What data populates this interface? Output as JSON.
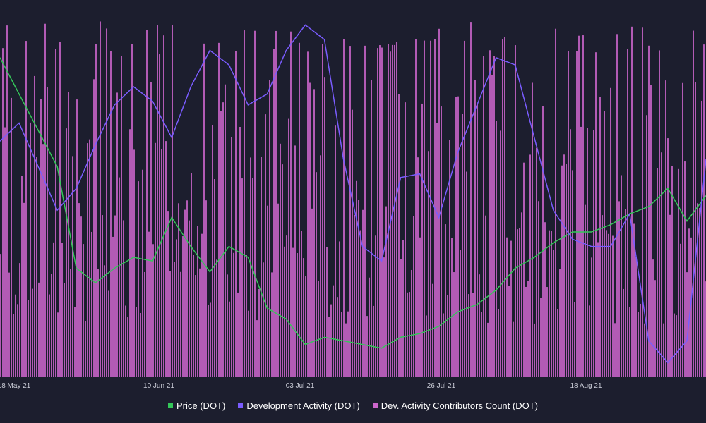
{
  "chart_data": {
    "type": "bar+line",
    "x_ticks": [
      "18 May 21",
      "10 Jun 21",
      "03 Jul 21",
      "26 Jul 21",
      "18 Aug 21"
    ],
    "series": [
      {
        "name": "Price (DOT)",
        "kind": "line",
        "color": "#34c759",
        "values": [
          88,
          78,
          68,
          58,
          30,
          26,
          30,
          33,
          32,
          44,
          36,
          29,
          36,
          33,
          19,
          16,
          9,
          11,
          10,
          9,
          8,
          11,
          12,
          14,
          18,
          20,
          24,
          30,
          33,
          37,
          40,
          40,
          42,
          45,
          47,
          52,
          43,
          50
        ]
      },
      {
        "name": "Development Activity (DOT)",
        "kind": "line",
        "color": "#7a5cff",
        "values": [
          65,
          70,
          58,
          46,
          52,
          64,
          75,
          80,
          76,
          66,
          80,
          90,
          86,
          75,
          78,
          90,
          97,
          93,
          60,
          36,
          32,
          55,
          56,
          44,
          62,
          75,
          88,
          86,
          66,
          46,
          38,
          36,
          36,
          45,
          10,
          4,
          10,
          60
        ]
      },
      {
        "name": "Dev. Activity Contributors Count (DOT)",
        "kind": "bar",
        "color": "#cc66cc"
      }
    ]
  },
  "legend": {
    "price_label": "Price (DOT)",
    "dev_label": "Development Activity (DOT)",
    "contrib_label": "Dev. Activity Contributors Count (DOT)"
  }
}
